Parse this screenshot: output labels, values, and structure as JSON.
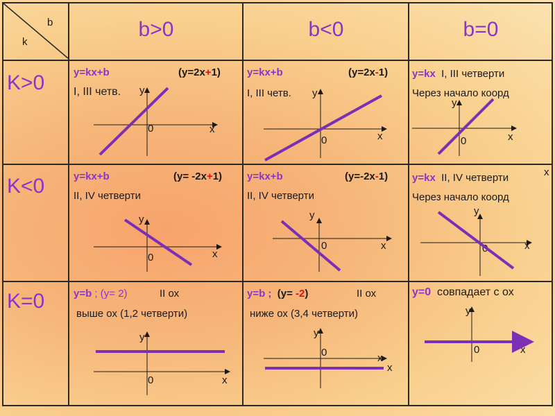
{
  "corner": {
    "b": "b",
    "k": "k"
  },
  "headers": {
    "b_pos": "b>0",
    "b_neg": "b<0",
    "b_zero": "b=0"
  },
  "rows": {
    "k_pos": "K>0",
    "k_neg": "K<0",
    "k_zero": "K=0"
  },
  "cells": {
    "r1c1": {
      "eq": "y=kx+b",
      "ex_open": "(y=2x",
      "ex_sign": "+",
      "ex_num": "1)",
      "desc": "I, III четв."
    },
    "r1c2": {
      "eq": "y=kx+b",
      "ex_open": "(y=2x",
      "ex_sign": "-",
      "ex_num": "1)",
      "desc": "I, III четв."
    },
    "r1c3": {
      "eq": "y=kx",
      "desc1": "I, III   четверти",
      "desc2": "Через начало коорд"
    },
    "r2c1": {
      "eq": "y=kx+b",
      "ex_open": "(y= -2x",
      "ex_sign": "+",
      "ex_num": "1)",
      "desc": "II, IV четверти"
    },
    "r2c2": {
      "eq": "y=kx+b",
      "ex_open": "(y=-2x",
      "ex_sign": "-",
      "ex_num": "1)",
      "desc": "II, IV четверти"
    },
    "r2c3": {
      "eq": "y=kx",
      "desc1": "II, IV   четверти",
      "desc2": "Через начало коорд"
    },
    "r3c1": {
      "eq": "y=b",
      "ex": " ; (y= 2)",
      "par": "II ох",
      "desc": "выше  ох (1,2 четверти)"
    },
    "r3c2": {
      "eq": "y=b ;",
      "ex_open": "(y= ",
      "ex_sign": "-2",
      "ex_close": ")",
      "par": "II ох",
      "desc": "ниже  ох (3,4 четверти)"
    },
    "r3c3": {
      "eq": "y=0",
      "desc": "совпадает с ох"
    }
  },
  "axis": {
    "x": "x",
    "y": "y",
    "origin": "0"
  },
  "stray_x": "x",
  "colors": {
    "accent": "#8a35c9",
    "red": "#e01010",
    "line": "#7a2fb5"
  }
}
